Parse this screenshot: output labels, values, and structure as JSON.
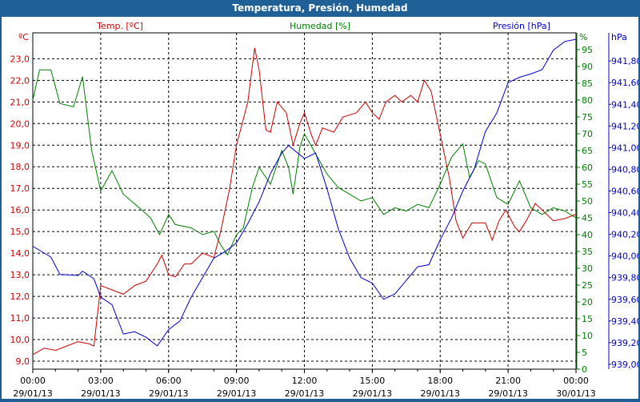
{
  "window": {
    "title": "Temperatura, Presión, Humedad"
  },
  "chart_data": {
    "type": "line",
    "title": "Temperatura, Presión, Humedad",
    "legend": {
      "temp": "Temp. [ºC]",
      "hum": "Humedad [%]",
      "pres": "Presión [hPa]"
    },
    "axes": {
      "temp_unit": "ºC",
      "hum_unit": "%",
      "pres_unit": "hPa"
    },
    "colors": {
      "temp": "#d00000",
      "hum": "#008000",
      "pres": "#0000d0"
    },
    "xlim": [
      0,
      24
    ],
    "x_ticks": [
      {
        "h": 0,
        "time": "00:00",
        "date": "29/01/13"
      },
      {
        "h": 3,
        "time": "03:00",
        "date": "29/01/13"
      },
      {
        "h": 6,
        "time": "06:00",
        "date": "29/01/13"
      },
      {
        "h": 9,
        "time": "09:00",
        "date": "29/01/13"
      },
      {
        "h": 12,
        "time": "12:00",
        "date": "29/01/13"
      },
      {
        "h": 15,
        "time": "15:00",
        "date": "29/01/13"
      },
      {
        "h": 18,
        "time": "18:00",
        "date": "29/01/13"
      },
      {
        "h": 21,
        "time": "21:00",
        "date": "29/01/13"
      },
      {
        "h": 24,
        "time": "00:00",
        "date": "30/01/13"
      }
    ],
    "temp_ylim": [
      8.63,
      24.2
    ],
    "temp_ticks": [
      "9,0",
      "10,0",
      "11,0",
      "12,0",
      "13,0",
      "14,0",
      "15,0",
      "16,0",
      "17,0",
      "18,0",
      "19,0",
      "20,0",
      "21,0",
      "22,0",
      "23,0"
    ],
    "hum_ylim": [
      0,
      100
    ],
    "hum_ticks": [
      "0",
      "5",
      "10",
      "15",
      "20",
      "25",
      "30",
      "35",
      "40",
      "45",
      "50",
      "55",
      "60",
      "65",
      "70",
      "75",
      "80",
      "85",
      "90",
      "95"
    ],
    "pres_ylim": [
      938.955,
      942.06
    ],
    "pres_ticks": [
      "939,00",
      "939,20",
      "939,40",
      "939,60",
      "939,80",
      "940,00",
      "940,20",
      "940,40",
      "940,60",
      "940,80",
      "941,00",
      "941,20",
      "941,40",
      "941,60",
      "941,80"
    ],
    "series": [
      {
        "name": "Temp. [ºC]",
        "key": "temp",
        "x": [
          0,
          0.5,
          1,
          1.5,
          2,
          2.5,
          2.7,
          3,
          3.5,
          4,
          4.5,
          5,
          5.5,
          5.7,
          6,
          6.3,
          6.7,
          7,
          7.5,
          8,
          8.3,
          8.7,
          9,
          9.5,
          9.8,
          10,
          10.3,
          10.5,
          10.8,
          11.2,
          11.5,
          11.8,
          12,
          12.3,
          12.5,
          12.8,
          13.3,
          13.7,
          14.3,
          14.7,
          15,
          15.3,
          15.6,
          16,
          16.3,
          16.7,
          17,
          17.3,
          17.6,
          18,
          18.4,
          18.7,
          19,
          19.4,
          20,
          20.3,
          20.6,
          20.9,
          21.3,
          21.5,
          21.8,
          22.2,
          22.5,
          23,
          23.5,
          24
        ],
        "y": [
          9.3,
          9.6,
          9.5,
          9.7,
          9.9,
          9.8,
          9.7,
          12.5,
          12.3,
          12.1,
          12.5,
          12.7,
          13.5,
          13.9,
          13.0,
          12.9,
          13.5,
          13.5,
          14.0,
          13.8,
          15.0,
          17.0,
          19.0,
          21.0,
          23.5,
          22.5,
          19.7,
          19.6,
          21.0,
          20.5,
          19.0,
          20.0,
          20.5,
          19.5,
          19.0,
          19.8,
          19.6,
          20.3,
          20.5,
          21.0,
          20.5,
          20.2,
          21.0,
          21.3,
          21.0,
          21.3,
          21.0,
          22.0,
          21.5,
          19.5,
          17.5,
          15.5,
          14.7,
          15.4,
          15.4,
          14.6,
          15.5,
          16.0,
          15.2,
          15.0,
          15.5,
          16.3,
          16.0,
          15.5,
          15.6,
          15.8
        ]
      },
      {
        "name": "Humedad [%]",
        "key": "hum",
        "x": [
          0,
          0.3,
          0.8,
          1.2,
          1.8,
          2.2,
          2.6,
          3,
          3.5,
          4,
          4.7,
          5.2,
          5.6,
          6,
          6.3,
          7,
          7.5,
          8,
          8.3,
          8.6,
          9,
          9.3,
          9.7,
          10,
          10.5,
          11,
          11.3,
          11.5,
          11.8,
          12,
          12.5,
          13,
          13.5,
          14,
          14.5,
          15,
          15.5,
          16,
          16.5,
          17,
          17.5,
          18,
          18.5,
          19,
          19.3,
          19.7,
          20,
          20.5,
          21,
          21.5,
          22,
          22.5,
          23,
          23.5,
          24
        ],
        "y": [
          80,
          89,
          89,
          79,
          78,
          87,
          65,
          53,
          59,
          52,
          48,
          45,
          40,
          46,
          43,
          42,
          40,
          41,
          37,
          34,
          40,
          42,
          54,
          60,
          55,
          65,
          60,
          52,
          66,
          70,
          64,
          58,
          54,
          52,
          50,
          51,
          46,
          48,
          47,
          49,
          48,
          55,
          63,
          67,
          57,
          62,
          61,
          51,
          49,
          56,
          48,
          46,
          48,
          47,
          45
        ]
      },
      {
        "name": "Presión [hPa]",
        "key": "pres",
        "x": [
          0,
          0.8,
          1.2,
          2,
          2.2,
          2.7,
          3,
          3.5,
          4,
          4.5,
          5,
          5.5,
          6,
          6.5,
          7,
          7.5,
          8,
          8.5,
          9,
          9.5,
          10,
          10.5,
          11,
          11.3,
          12,
          12.5,
          13,
          13.5,
          14,
          14.5,
          15,
          15.5,
          16,
          17,
          17.5,
          18,
          18.5,
          19,
          19.5,
          20,
          20.5,
          21,
          21.5,
          22,
          22.5,
          23,
          23.5,
          24
        ],
        "y": [
          940.09,
          939.99,
          939.83,
          939.82,
          939.86,
          939.79,
          939.62,
          939.55,
          939.28,
          939.3,
          939.25,
          939.17,
          939.32,
          939.4,
          939.62,
          939.8,
          939.98,
          940.04,
          940.12,
          940.3,
          940.5,
          940.76,
          940.95,
          941.02,
          940.9,
          940.95,
          940.62,
          940.25,
          939.98,
          939.8,
          939.75,
          939.6,
          939.65,
          939.9,
          939.92,
          940.15,
          940.35,
          940.6,
          940.8,
          941.15,
          941.32,
          941.6,
          941.65,
          941.68,
          941.72,
          941.9,
          941.98,
          942.0
        ]
      }
    ]
  }
}
